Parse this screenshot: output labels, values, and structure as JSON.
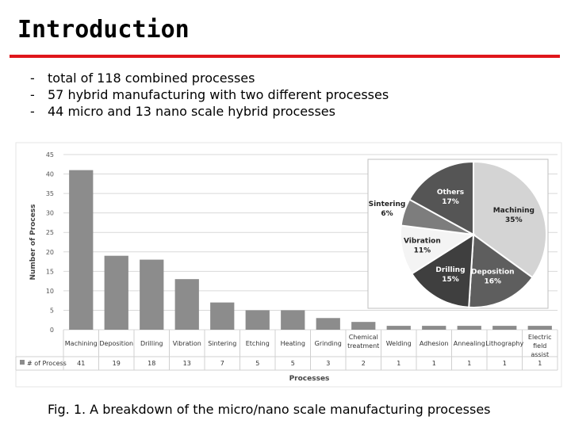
{
  "slide": {
    "title": "Introduction",
    "bullets": [
      "total of 118 combined processes",
      "57 hybrid manufacturing with two different processes",
      "44 micro and 13 nano scale hybrid processes"
    ],
    "bullet_marker": "-",
    "caption": "Fig. 1. A breakdown of the micro/nano scale manufacturing processes",
    "accent_color": "#e0161b"
  },
  "chart_data": [
    {
      "type": "bar",
      "categories": [
        "Machining",
        "Deposition",
        "Drilling",
        "Vibration",
        "Sintering",
        "Etching",
        "Heating",
        "Grinding",
        "Chemical treatment",
        "Welding",
        "Adhesion",
        "Annealing",
        "Lithography",
        "Electric field assist"
      ],
      "series": [
        {
          "name": "# of Process",
          "values": [
            41,
            19,
            18,
            13,
            7,
            5,
            5,
            3,
            2,
            1,
            1,
            1,
            1,
            1
          ]
        }
      ],
      "xlabel": "Processes",
      "ylabel": "Number of Process",
      "ylim": [
        0,
        45
      ],
      "yticks": [
        0,
        5,
        10,
        15,
        20,
        25,
        30,
        35,
        40,
        45
      ],
      "grid": true,
      "bar_color": "#8c8c8c",
      "table_below": true
    },
    {
      "type": "pie",
      "slices": [
        {
          "label": "Machining",
          "value": 35,
          "pct_label": "35%",
          "color": "#d4d4d4"
        },
        {
          "label": "Deposition",
          "value": 16,
          "pct_label": "16%",
          "color": "#5e5e5e"
        },
        {
          "label": "Drilling",
          "value": 15,
          "pct_label": "15%",
          "color": "#3f3f3f"
        },
        {
          "label": "Vibration",
          "value": 11,
          "pct_label": "11%",
          "color": "#f4f4f4"
        },
        {
          "label": "Sintering",
          "value": 6,
          "pct_label": "6%",
          "color": "#7d7d7d"
        },
        {
          "label": "Others",
          "value": 17,
          "pct_label": "17%",
          "color": "#555555"
        }
      ]
    }
  ]
}
